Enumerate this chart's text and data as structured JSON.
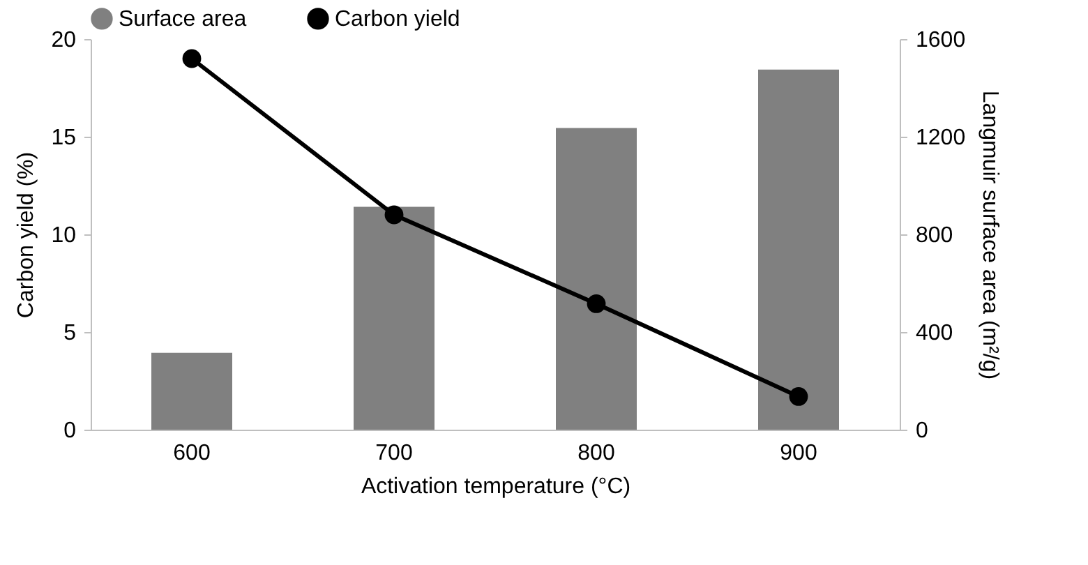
{
  "chart_data": {
    "type": "bar",
    "categories": [
      "600",
      "700",
      "800",
      "900"
    ],
    "xlabel": "Activation temperature (°C)",
    "ylabel": "Carbon yield (%)",
    "y2label": "Langmuir surface area (m²/g)",
    "series": [
      {
        "name": "Surface area",
        "axis": "y2",
        "color": "#808080",
        "values": [
          315,
          913,
          1236,
          1475
        ]
      },
      {
        "name": "Carbon yield",
        "type": "line",
        "axis": "y",
        "color": "#000000",
        "values": [
          19.0,
          11.0,
          6.45,
          1.7
        ]
      }
    ],
    "ylim": [
      0,
      20
    ],
    "yticks": [
      0,
      5,
      10,
      15,
      20
    ],
    "y2lim": [
      0,
      1600
    ],
    "y2ticks": [
      0,
      400,
      800,
      1200,
      1600
    ],
    "marker": "circle",
    "legend": "top",
    "grid": false
  }
}
